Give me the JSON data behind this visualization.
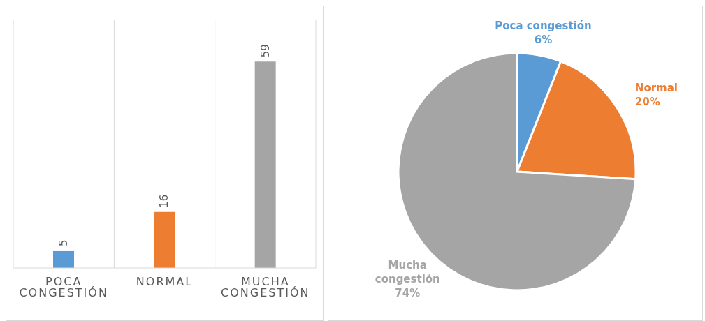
{
  "chart_data": [
    {
      "type": "bar",
      "categories": [
        "POCA CONGESTIÓN",
        "NORMAL",
        "MUCHA CONGESTIÓN"
      ],
      "values": [
        5,
        16,
        59
      ],
      "colors": [
        "#5b9bd5",
        "#ed7d31",
        "#a5a5a5"
      ],
      "data_labels": true,
      "grid": "x",
      "tick_labels": "x"
    },
    {
      "type": "pie",
      "categories": [
        "Poca congestión",
        "Normal",
        "Mucha congestión"
      ],
      "values": [
        6,
        20,
        74
      ],
      "colors": [
        "#5b9bd5",
        "#ed7d31",
        "#a5a5a5"
      ],
      "value_labels": [
        "6%",
        "20%",
        "74%"
      ]
    }
  ]
}
